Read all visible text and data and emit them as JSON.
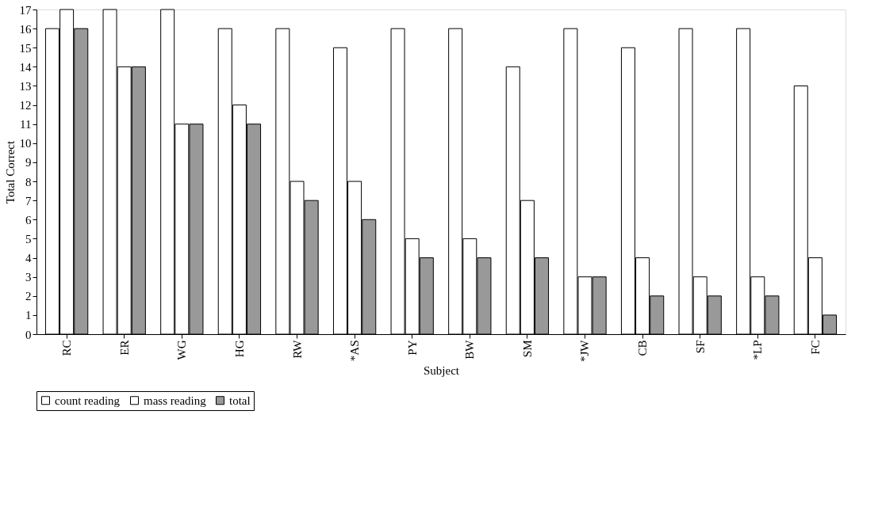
{
  "chart_data": {
    "type": "bar",
    "xlabel": "Subject",
    "ylabel": "Total Correct",
    "categories": [
      "RC",
      "ER",
      "WG",
      "HG",
      "RW",
      "*AS",
      "PY",
      "BW",
      "SM",
      "*JW",
      "CB",
      "SF",
      "*LP",
      "FC"
    ],
    "series": [
      {
        "name": "count reading",
        "color": "#ffffff",
        "values": [
          16,
          17,
          17,
          16,
          16,
          15,
          16,
          16,
          14,
          16,
          15,
          16,
          16,
          13
        ]
      },
      {
        "name": "mass reading",
        "color": "#ffffff",
        "values": [
          17,
          14,
          11,
          12,
          8,
          8,
          5,
          5,
          7,
          3,
          4,
          3,
          3,
          4
        ]
      },
      {
        "name": "total",
        "color": "#999999",
        "values": [
          16,
          14,
          11,
          11,
          7,
          6,
          4,
          4,
          4,
          3,
          2,
          2,
          2,
          1
        ]
      }
    ],
    "ylim": [
      0,
      17
    ],
    "yticks": [
      0,
      1,
      2,
      3,
      4,
      5,
      6,
      7,
      8,
      9,
      10,
      11,
      12,
      13,
      14,
      15,
      16,
      17
    ],
    "grid": false,
    "legend": "bottom"
  }
}
